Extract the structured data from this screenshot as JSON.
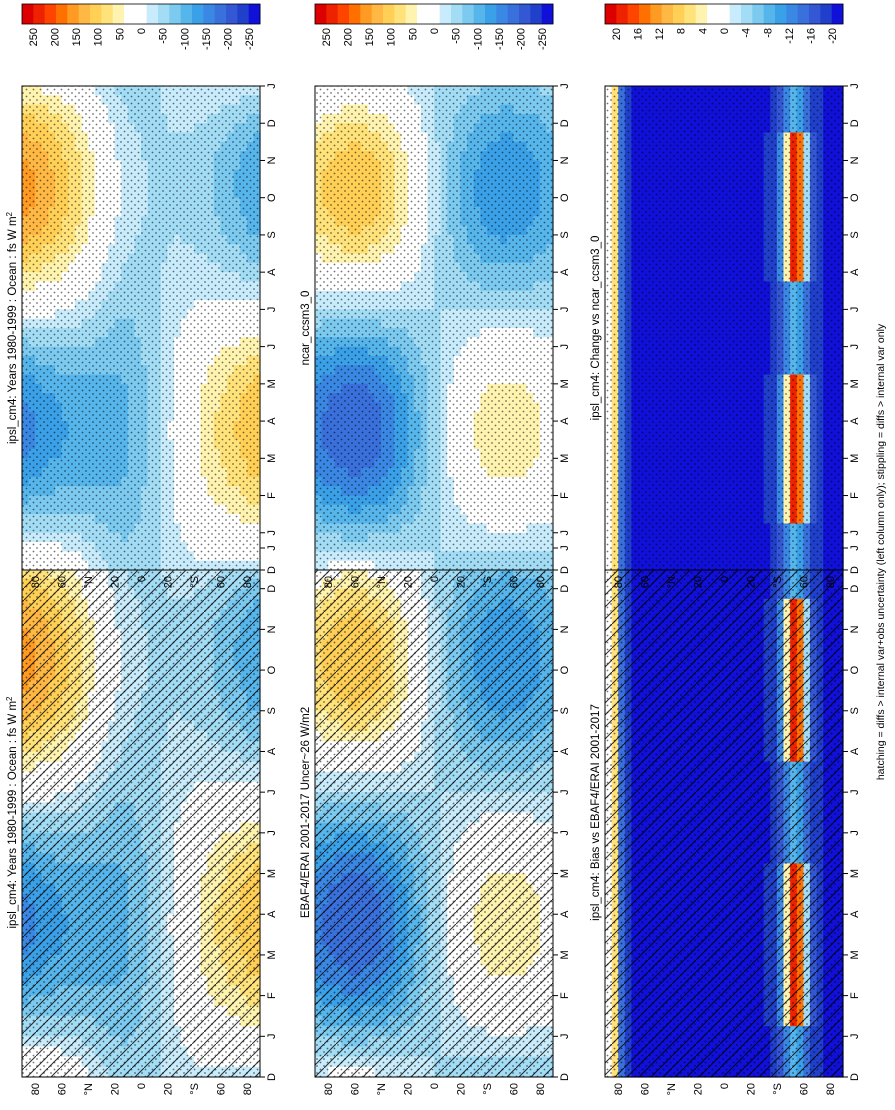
{
  "months": [
    "D",
    "J",
    "F",
    "M",
    "A",
    "M",
    "J",
    "J",
    "A",
    "S",
    "O",
    "N",
    "D",
    "J"
  ],
  "lat_ticks": [
    "80",
    "60",
    "°N",
    "20",
    "0",
    "20",
    "°S",
    "60",
    "80"
  ],
  "footer": "hatching = diffs > internal var+obs uncertainty (left column only); stippling = diffs > internal var only",
  "palettes": {
    "flux": [
      "#dd0000",
      "#ee2200",
      "#ff4400",
      "#ff7000",
      "#ff9a22",
      "#ffb844",
      "#ffd055",
      "#ffe27a",
      "#fff3b0",
      "#ffffff",
      "#ffffff",
      "#c8ecfb",
      "#a2dcf5",
      "#7ccaf0",
      "#56b6ec",
      "#3aa0e8",
      "#3a88e4",
      "#3a70dc",
      "#3458d4",
      "#2040cc",
      "#1010d8"
    ],
    "diff": [
      "#dd0000",
      "#ee2200",
      "#ff4400",
      "#ff7000",
      "#ff9a22",
      "#ffb844",
      "#ffd055",
      "#ffe27a",
      "#fff3b0",
      "#ffffff",
      "#ffffff",
      "#c8ecfb",
      "#a2dcf5",
      "#7ccaf0",
      "#56b6ec",
      "#3aa0e8",
      "#3a88e4",
      "#3a70dc",
      "#3458d4",
      "#2040cc",
      "#1010d8"
    ]
  },
  "chart_data": [
    {
      "type": "heatmap",
      "panel": "top-left",
      "title": "ipsl_cm4: Years 1980-1999 : Ocean : fs W m",
      "title_superscript": "2",
      "x": "months",
      "ylabel": "",
      "colorbar": {
        "ticks": [
          "250",
          "200",
          "150",
          "100",
          "50",
          "0",
          "-50",
          "-100",
          "-150",
          "-200",
          "-250"
        ],
        "range": [
          -275,
          275
        ]
      },
      "hatching": true,
      "stippling": true
    },
    {
      "type": "heatmap",
      "panel": "top-right",
      "title": "ipsl_cm4: Years 1980-1999 : Ocean : fs W m",
      "title_superscript": "2",
      "x": "months",
      "colorbar": {
        "ticks": [
          "250",
          "200",
          "150",
          "100",
          "50",
          "0",
          "-50",
          "-100",
          "-150",
          "-200",
          "-250"
        ],
        "range": [
          -275,
          275
        ]
      },
      "hatching": false,
      "stippling": true
    },
    {
      "type": "heatmap",
      "panel": "middle-left",
      "title": "EBAF4/ERAI 2001-2017 Uncer~26 W/m2",
      "x": "months",
      "colorbar": {
        "ticks": [
          "250",
          "200",
          "150",
          "100",
          "50",
          "0",
          "-50",
          "-100",
          "-150",
          "-200",
          "-250"
        ],
        "range": [
          -275,
          275
        ]
      },
      "hatching": true,
      "stippling": true
    },
    {
      "type": "heatmap",
      "panel": "middle-right",
      "title": "ncar_ccsm3_0",
      "x": "months",
      "colorbar": {
        "ticks": [
          "250",
          "200",
          "150",
          "100",
          "50",
          "0",
          "-50",
          "-100",
          "-150",
          "-200",
          "-250"
        ],
        "range": [
          -275,
          275
        ]
      },
      "hatching": false,
      "stippling": true
    },
    {
      "type": "heatmap",
      "panel": "bottom-left",
      "title": "ipsl_cm4: Bias vs EBAF4/ERAI 2001-2017",
      "x": "months",
      "colorbar": {
        "ticks": [
          "20",
          "16",
          "12",
          "8",
          "4",
          "0",
          "-4",
          "-8",
          "-12",
          "-16",
          "-20"
        ],
        "range": [
          -22,
          22
        ]
      },
      "hatching": true,
      "stippling": true
    },
    {
      "type": "heatmap",
      "panel": "bottom-right",
      "title": "ipsl_cm4: Change vs ncar_ccsm3_0",
      "x": "months",
      "colorbar": {
        "ticks": [
          "20",
          "16",
          "12",
          "8",
          "4",
          "0",
          "-4",
          "-8",
          "-12",
          "-16",
          "-20"
        ],
        "range": [
          -22,
          22
        ]
      },
      "hatching": false,
      "stippling": true
    }
  ]
}
